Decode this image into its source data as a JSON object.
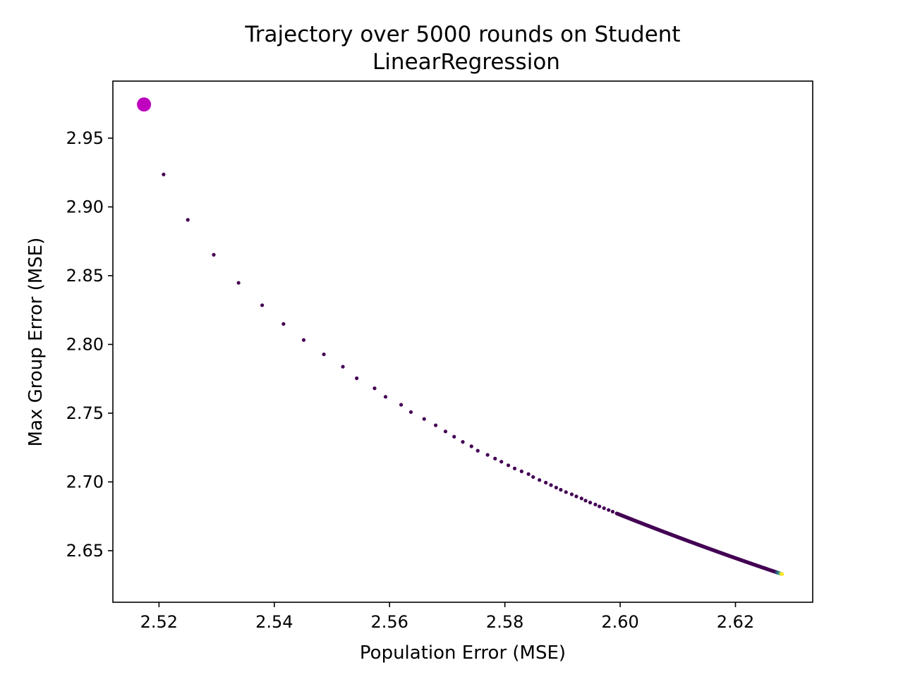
{
  "chart_data": {
    "type": "scatter",
    "title": "Trajectory over 5000 rounds on Student",
    "subtitle": "LinearRegression",
    "xlabel": "Population Error (MSE)",
    "ylabel": "Max Group Error (MSE)",
    "xlim": [
      2.512,
      2.6334
    ],
    "ylim": [
      2.6125,
      2.9915
    ],
    "xticks": [
      2.52,
      2.54,
      2.56,
      2.58,
      2.6,
      2.62
    ],
    "xtick_labels": [
      "2.52",
      "2.54",
      "2.56",
      "2.58",
      "2.60",
      "2.62"
    ],
    "yticks": [
      2.65,
      2.7,
      2.75,
      2.8,
      2.85,
      2.9,
      2.95
    ],
    "ytick_labels": [
      "2.65",
      "2.70",
      "2.75",
      "2.80",
      "2.85",
      "2.90",
      "2.95"
    ],
    "grid": false,
    "colormap": "viridis",
    "colors": {
      "start_marker": "#bf00bf",
      "early": "#440154",
      "mid": "#21918c",
      "late": "#fde725"
    },
    "start_point": {
      "x": 2.5174,
      "y": 2.9745
    },
    "x_start": 2.5208,
    "x_end": 2.6281,
    "y_end": 2.6291,
    "points": [
      [
        2.5208,
        2.9236
      ],
      [
        2.525,
        2.8906
      ],
      [
        2.5295,
        2.8652
      ],
      [
        2.5338,
        2.8448
      ],
      [
        2.5379,
        2.8285
      ],
      [
        2.5416,
        2.8149
      ],
      [
        2.5451,
        2.8032
      ],
      [
        2.5486,
        2.7928
      ],
      [
        2.5519,
        2.7838
      ],
      [
        2.5543,
        2.7754
      ],
      [
        2.5574,
        2.7681
      ],
      [
        2.5593,
        2.7619
      ],
      [
        2.562,
        2.7561
      ],
      [
        2.5637,
        2.7508
      ],
      [
        2.566,
        2.7458
      ],
      [
        2.568,
        2.7412
      ],
      [
        2.5697,
        2.7367
      ],
      [
        2.5712,
        2.7329
      ],
      [
        2.5727,
        2.7291
      ],
      [
        2.5742,
        2.7259
      ],
      [
        2.5753,
        2.7227
      ],
      [
        2.577,
        2.7197
      ],
      [
        2.5783,
        2.717
      ],
      [
        2.5794,
        2.7147
      ],
      [
        2.5806,
        2.7121
      ],
      [
        2.5817,
        2.7098
      ],
      [
        2.5829,
        2.7077
      ],
      [
        2.5841,
        2.7057
      ],
      [
        2.5849,
        2.7036
      ],
      [
        2.586,
        2.7014
      ],
      [
        2.5871,
        2.6995
      ],
      [
        2.588,
        2.6977
      ],
      [
        2.5889,
        2.6959
      ],
      [
        2.5897,
        2.6943
      ],
      [
        2.5906,
        2.6926
      ],
      [
        2.5916,
        2.691
      ],
      [
        2.5924,
        2.6895
      ],
      [
        2.5933,
        2.688
      ],
      [
        2.594,
        2.6864
      ],
      [
        2.5948,
        2.685
      ],
      [
        2.5957,
        2.6836
      ],
      [
        2.5964,
        2.6822
      ],
      [
        2.5972,
        2.6809
      ],
      [
        2.598,
        2.6796
      ],
      [
        2.5987,
        2.6784
      ],
      [
        2.5994,
        2.6771
      ]
    ]
  }
}
